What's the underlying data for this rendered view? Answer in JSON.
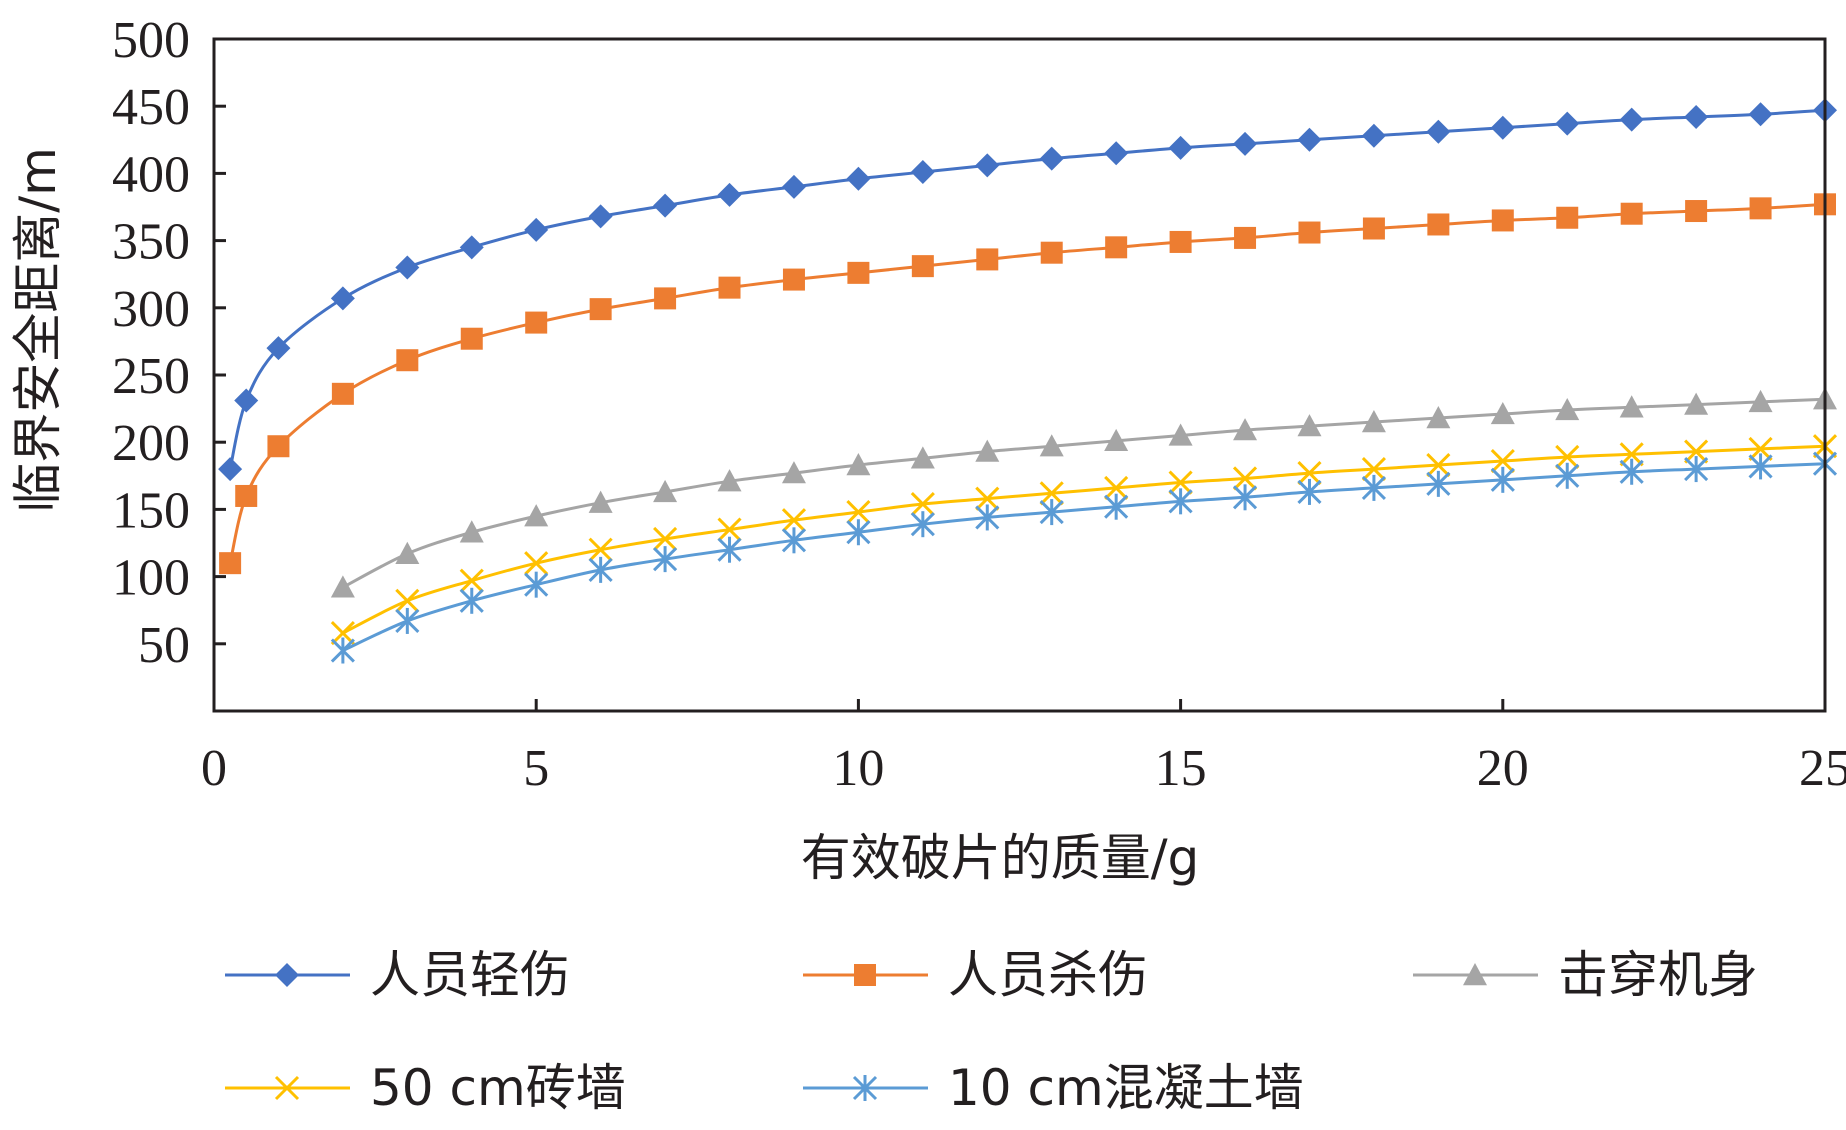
{
  "chart_data": {
    "type": "line",
    "xlabel": "有效破片的质量/g",
    "ylabel": "临界安全距离/m",
    "xlim": [
      0,
      25
    ],
    "ylim": [
      0,
      500
    ],
    "x_ticks": [
      "0",
      "5",
      "10",
      "15",
      "20",
      "25"
    ],
    "y_ticks": [
      "50",
      "100",
      "150",
      "200",
      "250",
      "300",
      "350",
      "400",
      "450",
      "500"
    ],
    "grid": false,
    "legend_position": "bottom",
    "series": [
      {
        "name": "人员轻伤",
        "color": "#4472c4",
        "marker": "diamond",
        "x": [
          0.25,
          0.5,
          1,
          2,
          3,
          4,
          5,
          6,
          7,
          8,
          9,
          10,
          11,
          12,
          13,
          14,
          15,
          16,
          17,
          18,
          19,
          20,
          21,
          22,
          23,
          24,
          25
        ],
        "y": [
          180,
          231,
          270,
          307,
          330,
          345,
          358,
          368,
          376,
          384,
          390,
          396,
          401,
          406,
          411,
          415,
          419,
          422,
          425,
          428,
          431,
          434,
          437,
          440,
          442,
          444,
          447
        ]
      },
      {
        "name": "人员杀伤",
        "color": "#ed7d31",
        "marker": "square",
        "x": [
          0.25,
          0.5,
          1,
          2,
          3,
          4,
          5,
          6,
          7,
          8,
          9,
          10,
          11,
          12,
          13,
          14,
          15,
          16,
          17,
          18,
          19,
          20,
          21,
          22,
          23,
          24,
          25
        ],
        "y": [
          110,
          160,
          197,
          236,
          261,
          277,
          289,
          299,
          307,
          315,
          321,
          326,
          331,
          336,
          341,
          345,
          349,
          352,
          356,
          359,
          362,
          365,
          367,
          370,
          372,
          374,
          377
        ]
      },
      {
        "name": "击穿机身",
        "color": "#a5a5a5",
        "marker": "triangle",
        "x": [
          2,
          3,
          4,
          5,
          6,
          7,
          8,
          9,
          10,
          11,
          12,
          13,
          14,
          15,
          16,
          17,
          18,
          19,
          20,
          21,
          22,
          23,
          24,
          25
        ],
        "y": [
          92,
          117,
          133,
          145,
          155,
          163,
          171,
          177,
          183,
          188,
          193,
          197,
          201,
          205,
          209,
          212,
          215,
          218,
          221,
          224,
          226,
          228,
          230,
          232
        ]
      },
      {
        "name": "50 cm砖墙",
        "color": "#ffc000",
        "marker": "x",
        "x": [
          2,
          3,
          4,
          5,
          6,
          7,
          8,
          9,
          10,
          11,
          12,
          13,
          14,
          15,
          16,
          17,
          18,
          19,
          20,
          21,
          22,
          23,
          24,
          25
        ],
        "y": [
          58,
          82,
          97,
          110,
          120,
          128,
          135,
          142,
          148,
          154,
          158,
          162,
          166,
          170,
          173,
          177,
          180,
          183,
          186,
          189,
          191,
          193,
          195,
          197
        ]
      },
      {
        "name": "10 cm混凝土墙",
        "color": "#5b9bd5",
        "marker": "asterisk",
        "x": [
          2,
          3,
          4,
          5,
          6,
          7,
          8,
          9,
          10,
          11,
          12,
          13,
          14,
          15,
          16,
          17,
          18,
          19,
          20,
          21,
          22,
          23,
          24,
          25
        ],
        "y": [
          45,
          67,
          82,
          94,
          105,
          113,
          120,
          127,
          133,
          139,
          144,
          148,
          152,
          156,
          159,
          163,
          166,
          169,
          172,
          175,
          178,
          180,
          182,
          184
        ]
      }
    ]
  }
}
